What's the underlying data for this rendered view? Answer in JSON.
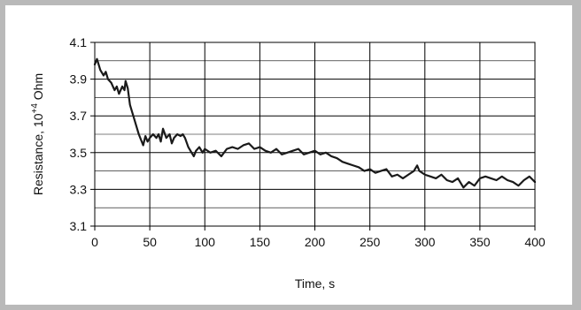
{
  "chart_data": {
    "type": "line",
    "title": "",
    "xlabel": "Time, s",
    "ylabel_main": "Resistance, 10",
    "ylabel_sup": "+4",
    "ylabel_unit": " Ohm",
    "xlim": [
      0,
      400
    ],
    "ylim": [
      3.1,
      4.1
    ],
    "xticks": [
      0,
      50,
      100,
      150,
      200,
      250,
      300,
      350,
      400
    ],
    "xtick_labels": [
      "0",
      "50",
      "100",
      "150",
      "200",
      "250",
      "300",
      "350",
      "400"
    ],
    "yticks": [
      3.1,
      3.3,
      3.5,
      3.7,
      3.9,
      4.1
    ],
    "ytick_labels": [
      "3.1",
      "3.3",
      "3.5",
      "3.7",
      "3.9",
      "4.1"
    ],
    "y_minor_gridlines": [
      3.2,
      3.4,
      3.6,
      3.8,
      4.0
    ],
    "grid": true,
    "legend": "none",
    "line_color": "#1a1a1a",
    "series": [
      {
        "x": [
          0,
          2,
          5,
          8,
          10,
          12,
          15,
          18,
          20,
          22,
          25,
          27,
          28,
          30,
          32,
          34,
          36,
          38,
          40,
          42,
          44,
          46,
          48,
          50,
          53,
          56,
          58,
          60,
          62,
          65,
          68,
          70,
          72,
          75,
          78,
          80,
          82,
          85,
          88,
          90,
          92,
          95,
          98,
          100,
          105,
          110,
          115,
          120,
          125,
          130,
          135,
          140,
          145,
          150,
          155,
          160,
          165,
          170,
          175,
          180,
          185,
          190,
          195,
          200,
          205,
          210,
          215,
          220,
          225,
          230,
          235,
          240,
          245,
          250,
          255,
          260,
          265,
          270,
          275,
          280,
          285,
          290,
          293,
          295,
          300,
          305,
          310,
          315,
          320,
          325,
          330,
          335,
          340,
          345,
          350,
          355,
          360,
          365,
          370,
          375,
          380,
          385,
          390,
          395,
          400
        ],
        "y": [
          3.98,
          4.01,
          3.95,
          3.92,
          3.94,
          3.9,
          3.88,
          3.84,
          3.86,
          3.82,
          3.86,
          3.84,
          3.89,
          3.85,
          3.76,
          3.72,
          3.68,
          3.64,
          3.6,
          3.57,
          3.54,
          3.59,
          3.56,
          3.58,
          3.6,
          3.58,
          3.6,
          3.56,
          3.63,
          3.58,
          3.6,
          3.55,
          3.58,
          3.6,
          3.59,
          3.6,
          3.58,
          3.53,
          3.5,
          3.48,
          3.51,
          3.53,
          3.5,
          3.52,
          3.5,
          3.51,
          3.48,
          3.52,
          3.53,
          3.52,
          3.54,
          3.55,
          3.52,
          3.53,
          3.51,
          3.5,
          3.52,
          3.49,
          3.5,
          3.51,
          3.52,
          3.49,
          3.5,
          3.51,
          3.49,
          3.5,
          3.48,
          3.47,
          3.45,
          3.44,
          3.43,
          3.42,
          3.4,
          3.41,
          3.39,
          3.4,
          3.41,
          3.37,
          3.38,
          3.36,
          3.38,
          3.4,
          3.43,
          3.4,
          3.38,
          3.37,
          3.36,
          3.38,
          3.35,
          3.34,
          3.36,
          3.31,
          3.34,
          3.32,
          3.36,
          3.37,
          3.36,
          3.35,
          3.37,
          3.35,
          3.34,
          3.32,
          3.35,
          3.37,
          3.34
        ]
      }
    ]
  }
}
